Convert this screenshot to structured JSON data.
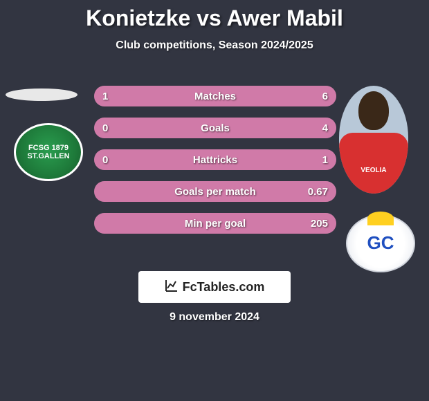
{
  "header": {
    "title": "Konietzke vs Awer Mabil",
    "subtitle": "Club competitions, Season 2024/2025"
  },
  "left": {
    "badge_text": "FCSG 1879 ST.GALLEN",
    "badge_bg": "#2a9d4f"
  },
  "right": {
    "sponsor": "VEOLIA",
    "jersey_color": "#d83030",
    "badge_letters": "GC",
    "badge_blue": "#2050c0",
    "badge_yellow": "#ffd020"
  },
  "stats": {
    "bar_bg": "#5a5d6a",
    "fill_color": "#d07aa8",
    "rows": [
      {
        "label": "Matches",
        "left": "1",
        "right": "6",
        "left_pct": 14,
        "right_pct": 86
      },
      {
        "label": "Goals",
        "left": "0",
        "right": "4",
        "left_pct": 0,
        "right_pct": 100
      },
      {
        "label": "Hattricks",
        "left": "0",
        "right": "1",
        "left_pct": 0,
        "right_pct": 100
      },
      {
        "label": "Goals per match",
        "left": "",
        "right": "0.67",
        "left_pct": 0,
        "right_pct": 100
      },
      {
        "label": "Min per goal",
        "left": "",
        "right": "205",
        "left_pct": 0,
        "right_pct": 100
      }
    ]
  },
  "watermark": {
    "text": "FcTables.com"
  },
  "footer": {
    "date": "9 november 2024"
  },
  "colors": {
    "page_bg": "#323541",
    "text": "#ffffff"
  }
}
